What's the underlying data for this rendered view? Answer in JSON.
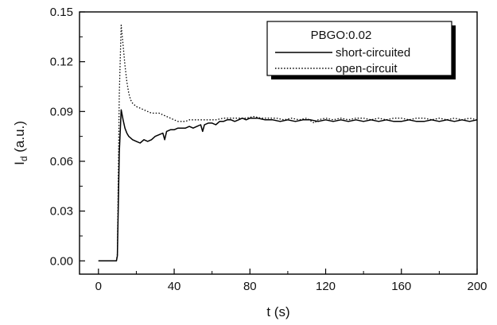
{
  "chart_data": {
    "type": "line",
    "title": "",
    "xlabel": "t (s)",
    "ylabel_main": "I",
    "ylabel_sub": "d",
    "ylabel_unit": " (a.u.)",
    "xlim": [
      -10,
      200
    ],
    "ylim": [
      -0.008,
      0.15
    ],
    "x_ticks": [
      0,
      40,
      80,
      120,
      160,
      200
    ],
    "x_tick_labels": [
      "0",
      "40",
      "80",
      "120",
      "160",
      "200"
    ],
    "y_ticks": [
      0.0,
      0.03,
      0.06,
      0.09,
      0.12,
      0.15
    ],
    "y_tick_labels": [
      "0.00",
      "0.03",
      "0.06",
      "0.09",
      "0.12",
      "0.15"
    ],
    "grid": false,
    "legend": {
      "placement": "top-right",
      "title": "PBGO:0.02",
      "entries": [
        "short-circuited",
        "open-circuit"
      ]
    },
    "series": [
      {
        "name": "short-circuited",
        "style": "solid",
        "color": "#000000",
        "points": [
          [
            0,
            0.0
          ],
          [
            9.5,
            0.0
          ],
          [
            10,
            0.003
          ],
          [
            11,
            0.065
          ],
          [
            12,
            0.091
          ],
          [
            13,
            0.085
          ],
          [
            14,
            0.08
          ],
          [
            15,
            0.077
          ],
          [
            16,
            0.075
          ],
          [
            18,
            0.073
          ],
          [
            20,
            0.072
          ],
          [
            22,
            0.071
          ],
          [
            24,
            0.073
          ],
          [
            26,
            0.072
          ],
          [
            28,
            0.073
          ],
          [
            30,
            0.075
          ],
          [
            32,
            0.076
          ],
          [
            34,
            0.077
          ],
          [
            35,
            0.073
          ],
          [
            36,
            0.078
          ],
          [
            38,
            0.079
          ],
          [
            40,
            0.079
          ],
          [
            42,
            0.08
          ],
          [
            44,
            0.08
          ],
          [
            46,
            0.08
          ],
          [
            48,
            0.081
          ],
          [
            50,
            0.08
          ],
          [
            52,
            0.081
          ],
          [
            54,
            0.082
          ],
          [
            55,
            0.078
          ],
          [
            56,
            0.082
          ],
          [
            58,
            0.083
          ],
          [
            60,
            0.083
          ],
          [
            62,
            0.082
          ],
          [
            64,
            0.084
          ],
          [
            66,
            0.084
          ],
          [
            68,
            0.085
          ],
          [
            70,
            0.085
          ],
          [
            72,
            0.084
          ],
          [
            74,
            0.085
          ],
          [
            76,
            0.086
          ],
          [
            78,
            0.085
          ],
          [
            80,
            0.086
          ],
          [
            84,
            0.086
          ],
          [
            88,
            0.085
          ],
          [
            92,
            0.085
          ],
          [
            96,
            0.084
          ],
          [
            100,
            0.085
          ],
          [
            104,
            0.084
          ],
          [
            108,
            0.085
          ],
          [
            112,
            0.085
          ],
          [
            116,
            0.084
          ],
          [
            120,
            0.085
          ],
          [
            124,
            0.084
          ],
          [
            128,
            0.085
          ],
          [
            132,
            0.084
          ],
          [
            136,
            0.085
          ],
          [
            140,
            0.084
          ],
          [
            144,
            0.085
          ],
          [
            148,
            0.084
          ],
          [
            152,
            0.085
          ],
          [
            156,
            0.084
          ],
          [
            160,
            0.084
          ],
          [
            164,
            0.085
          ],
          [
            168,
            0.084
          ],
          [
            172,
            0.084
          ],
          [
            176,
            0.085
          ],
          [
            180,
            0.084
          ],
          [
            184,
            0.085
          ],
          [
            188,
            0.084
          ],
          [
            192,
            0.085
          ],
          [
            196,
            0.084
          ],
          [
            200,
            0.085
          ]
        ]
      },
      {
        "name": "open-circuit",
        "style": "dotted",
        "color": "#000000",
        "points": [
          [
            0,
            0.0
          ],
          [
            9.5,
            0.0
          ],
          [
            10,
            0.004
          ],
          [
            11,
            0.1
          ],
          [
            12,
            0.142
          ],
          [
            13,
            0.13
          ],
          [
            14,
            0.118
          ],
          [
            15,
            0.108
          ],
          [
            16,
            0.101
          ],
          [
            17,
            0.097
          ],
          [
            18,
            0.095
          ],
          [
            20,
            0.093
          ],
          [
            22,
            0.092
          ],
          [
            24,
            0.091
          ],
          [
            26,
            0.09
          ],
          [
            28,
            0.089
          ],
          [
            30,
            0.089
          ],
          [
            32,
            0.089
          ],
          [
            34,
            0.088
          ],
          [
            36,
            0.087
          ],
          [
            38,
            0.086
          ],
          [
            40,
            0.085
          ],
          [
            42,
            0.084
          ],
          [
            44,
            0.084
          ],
          [
            46,
            0.084
          ],
          [
            48,
            0.085
          ],
          [
            50,
            0.085
          ],
          [
            54,
            0.085
          ],
          [
            58,
            0.085
          ],
          [
            62,
            0.085
          ],
          [
            66,
            0.086
          ],
          [
            70,
            0.086
          ],
          [
            74,
            0.086
          ],
          [
            78,
            0.086
          ],
          [
            82,
            0.087
          ],
          [
            86,
            0.086
          ],
          [
            90,
            0.086
          ],
          [
            94,
            0.086
          ],
          [
            98,
            0.085
          ],
          [
            102,
            0.086
          ],
          [
            106,
            0.085
          ],
          [
            110,
            0.086
          ],
          [
            114,
            0.083
          ],
          [
            116,
            0.085
          ],
          [
            120,
            0.086
          ],
          [
            124,
            0.085
          ],
          [
            128,
            0.086
          ],
          [
            132,
            0.085
          ],
          [
            136,
            0.086
          ],
          [
            140,
            0.086
          ],
          [
            144,
            0.085
          ],
          [
            148,
            0.086
          ],
          [
            152,
            0.085
          ],
          [
            156,
            0.086
          ],
          [
            160,
            0.086
          ],
          [
            164,
            0.085
          ],
          [
            168,
            0.086
          ],
          [
            172,
            0.086
          ],
          [
            176,
            0.085
          ],
          [
            180,
            0.086
          ],
          [
            184,
            0.085
          ],
          [
            188,
            0.086
          ],
          [
            192,
            0.085
          ],
          [
            196,
            0.086
          ],
          [
            200,
            0.085
          ]
        ]
      }
    ]
  }
}
